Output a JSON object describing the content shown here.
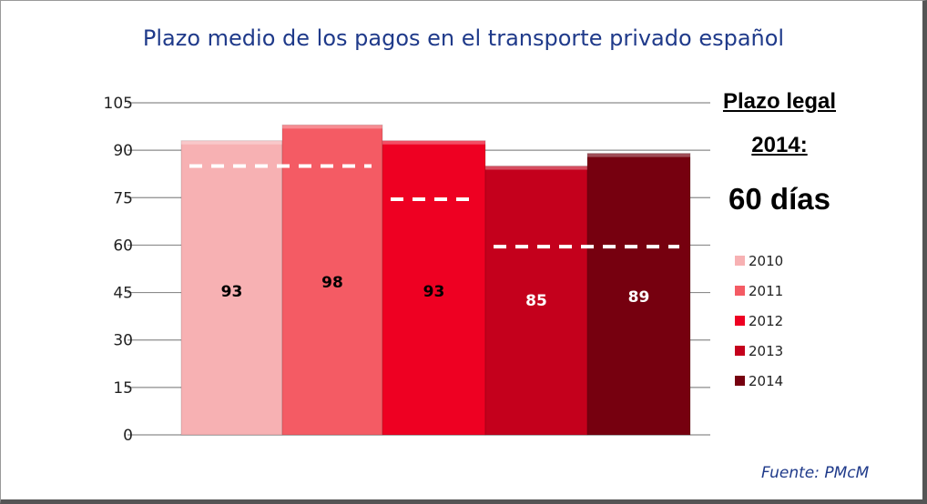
{
  "chart_data": {
    "type": "bar",
    "title": "Plazo medio de los pagos en el transporte privado español",
    "categories": [
      "2010",
      "2011",
      "2012",
      "2013",
      "2014"
    ],
    "series": [
      {
        "name": "2010",
        "value": 93,
        "color": "#f7b1b3"
      },
      {
        "name": "2011",
        "value": 98,
        "color": "#f45b64"
      },
      {
        "name": "2012",
        "value": 93,
        "color": "#ee0022"
      },
      {
        "name": "2013",
        "value": 85,
        "color": "#c4001c"
      },
      {
        "name": "2014",
        "value": 89,
        "color": "#76000f"
      }
    ],
    "data_labels": [
      "93",
      "98",
      "93",
      "85",
      "89"
    ],
    "reference_lines": [
      {
        "categories": [
          "2010",
          "2011"
        ],
        "value": 85
      },
      {
        "categories": [
          "2012"
        ],
        "value": 74.5
      },
      {
        "categories": [
          "2013",
          "2014"
        ],
        "value": 59.5
      }
    ],
    "ylim": [
      0,
      105
    ],
    "yticks": [
      "0",
      "15",
      "30",
      "45",
      "60",
      "75",
      "90",
      "105"
    ],
    "grid": true,
    "legend": "right",
    "legend_entries": [
      "2010",
      "2011",
      "2012",
      "2013",
      "2014"
    ],
    "annotation": {
      "line1": "Plazo legal",
      "line2": "2014:",
      "line3": "60 días"
    },
    "source": "Fuente: PMcM"
  }
}
